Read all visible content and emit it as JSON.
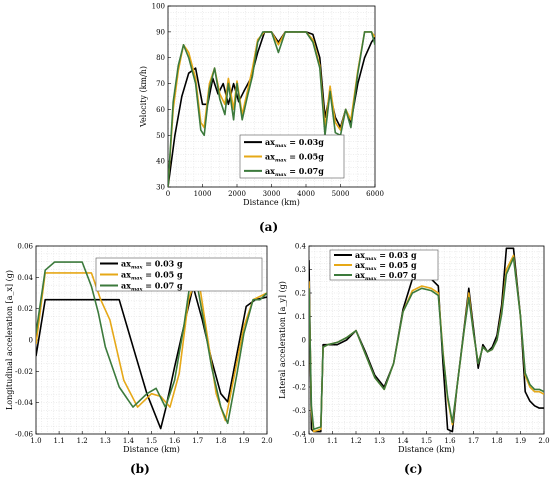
{
  "panel_labels": [
    "(a)",
    "(b)",
    "(c)"
  ],
  "colors": {
    "s1": "#000000",
    "s2": "#e6a817",
    "s3": "#3c7a3c"
  },
  "chart_data": [
    {
      "type": "line",
      "id": "a",
      "xlabel": "Distance (km)",
      "ylabel": "Velocity (km/h)",
      "xlim": [
        0,
        6000
      ],
      "ylim": [
        30,
        100
      ],
      "xticks": [
        "0",
        "1000",
        "2000",
        "3000",
        "4000",
        "5000",
        "6000"
      ],
      "yticks": [
        "30",
        "40",
        "50",
        "60",
        "70",
        "80",
        "90",
        "100"
      ],
      "grid": true,
      "legend_position": "lower-center",
      "series": [
        {
          "name": "ax_max = 0.03g",
          "color": "#000000",
          "x": [
            0,
            200,
            400,
            600,
            800,
            1000,
            1150,
            1300,
            1450,
            1600,
            1750,
            1900,
            2050,
            2200,
            2400,
            2600,
            2800,
            3000,
            3200,
            3400,
            3600,
            3800,
            4000,
            4200,
            4400,
            4550,
            4700,
            4850,
            5000,
            5150,
            5300,
            5500,
            5700,
            5900,
            6000
          ],
          "y": [
            30,
            50,
            65,
            74,
            76,
            62,
            62,
            72,
            66,
            70,
            62,
            70,
            63,
            67,
            72,
            82,
            90,
            90,
            86,
            90,
            90,
            90,
            90,
            89,
            80,
            57,
            66,
            57,
            53,
            60,
            55,
            70,
            80,
            86,
            88
          ]
        },
        {
          "name": "ax_max = 0.05g",
          "color": "#e6a817",
          "x": [
            0,
            150,
            300,
            450,
            600,
            800,
            950,
            1050,
            1200,
            1350,
            1500,
            1650,
            1750,
            1900,
            2000,
            2150,
            2300,
            2450,
            2600,
            2800,
            3000,
            3200,
            3400,
            3600,
            3800,
            4000,
            4200,
            4400,
            4550,
            4700,
            4850,
            5000,
            5150,
            5300,
            5500,
            5700,
            5900,
            6000
          ],
          "y": [
            30,
            60,
            75,
            85,
            82,
            72,
            55,
            53,
            70,
            76,
            66,
            62,
            72,
            60,
            71,
            58,
            67,
            76,
            87,
            90,
            90,
            85,
            90,
            90,
            90,
            90,
            87,
            77,
            53,
            69,
            55,
            52,
            60,
            56,
            75,
            90,
            90,
            88
          ]
        },
        {
          "name": "ax_max = 0.07g",
          "color": "#3c7a3c",
          "x": [
            0,
            150,
            300,
            450,
            600,
            800,
            950,
            1050,
            1200,
            1350,
            1500,
            1650,
            1750,
            1900,
            2000,
            2150,
            2300,
            2450,
            2600,
            2750,
            3000,
            3200,
            3400,
            3600,
            3800,
            4000,
            4200,
            4400,
            4550,
            4700,
            4850,
            5000,
            5150,
            5300,
            5500,
            5700,
            5900,
            6000
          ],
          "y": [
            30,
            63,
            77,
            85,
            80,
            70,
            52,
            50,
            68,
            76,
            64,
            58,
            70,
            56,
            70,
            56,
            65,
            73,
            86,
            90,
            90,
            82,
            90,
            90,
            90,
            90,
            86,
            76,
            50,
            67,
            51,
            50,
            60,
            53,
            74,
            90,
            90,
            85
          ]
        }
      ]
    },
    {
      "type": "line",
      "id": "b",
      "xlabel": "Distance (km)",
      "ylabel": "Longitudinal acceleration [a_x] (g)",
      "xlim": [
        1.0,
        2.0
      ],
      "ylim": [
        -0.07,
        0.07
      ],
      "xticks": [
        "1.0",
        "1.1",
        "1.2",
        "1.3",
        "1.4",
        "1.5",
        "1.6",
        "1.7",
        "1.8",
        "1.9",
        "2.0"
      ],
      "yticks": [
        "-0.06",
        "-0.04",
        "-0.02",
        "0",
        "0.02",
        "0.04",
        "0.06"
      ],
      "grid": true,
      "legend_position": "top-right",
      "series": [
        {
          "name": "ax_max = 0.03 g",
          "color": "#000000",
          "x": [
            1.0,
            1.04,
            1.1,
            1.2,
            1.3,
            1.36,
            1.42,
            1.48,
            1.54,
            1.56,
            1.6,
            1.64,
            1.68,
            1.72,
            1.76,
            1.8,
            1.83,
            1.87,
            1.91,
            1.95,
            2.0
          ],
          "y": [
            -0.012,
            0.03,
            0.03,
            0.03,
            0.03,
            0.03,
            -0.005,
            -0.04,
            -0.066,
            -0.052,
            -0.02,
            0.01,
            0.04,
            0.015,
            -0.015,
            -0.04,
            -0.046,
            -0.01,
            0.025,
            0.03,
            0.032
          ]
        },
        {
          "name": "ax_max = 0.05 g",
          "color": "#e6a817",
          "x": [
            1.0,
            1.04,
            1.1,
            1.2,
            1.24,
            1.28,
            1.32,
            1.38,
            1.44,
            1.5,
            1.54,
            1.58,
            1.62,
            1.66,
            1.7,
            1.74,
            1.78,
            1.82,
            1.86,
            1.9,
            1.94,
            2.0
          ],
          "y": [
            -0.003,
            0.05,
            0.05,
            0.05,
            0.05,
            0.03,
            0.015,
            -0.03,
            -0.05,
            -0.04,
            -0.042,
            -0.05,
            -0.025,
            0.03,
            0.05,
            0.005,
            -0.04,
            -0.06,
            -0.025,
            0.01,
            0.03,
            0.035
          ]
        },
        {
          "name": "ax_max = 0.07 g",
          "color": "#3c7a3c",
          "x": [
            1.0,
            1.04,
            1.08,
            1.16,
            1.2,
            1.24,
            1.27,
            1.3,
            1.36,
            1.42,
            1.48,
            1.52,
            1.56,
            1.6,
            1.64,
            1.68,
            1.72,
            1.76,
            1.8,
            1.83,
            1.87,
            1.9,
            1.94,
            1.97,
            2.0
          ],
          "y": [
            0.005,
            0.052,
            0.058,
            0.058,
            0.058,
            0.04,
            0.02,
            -0.005,
            -0.035,
            -0.05,
            -0.04,
            -0.036,
            -0.05,
            -0.03,
            0.01,
            0.058,
            0.02,
            -0.02,
            -0.05,
            -0.062,
            -0.025,
            0.005,
            0.03,
            0.03,
            0.035
          ]
        }
      ]
    },
    {
      "type": "line",
      "id": "c",
      "xlabel": "Distance (km)",
      "ylabel": "Lateral acceleration [a_y] (g)",
      "xlim": [
        1.0,
        2.0
      ],
      "ylim": [
        -0.4,
        0.4
      ],
      "xticks": [
        "1.0",
        "1.1",
        "1.2",
        "1.3",
        "1.4",
        "1.5",
        "1.6",
        "1.7",
        "1.8",
        "1.9",
        "2.0"
      ],
      "yticks": [
        "-0.4",
        "-0.3",
        "-0.2",
        "-0.1",
        "0",
        "0.1",
        "0.2",
        "0.3",
        "0.4"
      ],
      "grid": true,
      "legend_position": "top-center",
      "series": [
        {
          "name": "ax_max = 0.03 g",
          "color": "#000000",
          "x": [
            1.0,
            1.01,
            1.02,
            1.05,
            1.06,
            1.08,
            1.12,
            1.16,
            1.2,
            1.24,
            1.28,
            1.32,
            1.36,
            1.4,
            1.44,
            1.48,
            1.52,
            1.55,
            1.57,
            1.59,
            1.61,
            1.63,
            1.66,
            1.68,
            1.7,
            1.72,
            1.74,
            1.76,
            1.78,
            1.8,
            1.82,
            1.84,
            1.87,
            1.9,
            1.92,
            1.94,
            1.96,
            1.98,
            2.0
          ],
          "y": [
            0.34,
            -0.38,
            -0.39,
            -0.39,
            -0.02,
            -0.02,
            -0.02,
            0.0,
            0.04,
            -0.05,
            -0.15,
            -0.2,
            -0.1,
            0.13,
            0.26,
            0.27,
            0.26,
            0.23,
            -0.1,
            -0.38,
            -0.39,
            -0.2,
            0.05,
            0.22,
            0.05,
            -0.12,
            -0.02,
            -0.05,
            -0.03,
            0.02,
            0.15,
            0.39,
            0.39,
            0.1,
            -0.22,
            -0.26,
            -0.28,
            -0.29,
            -0.29
          ]
        },
        {
          "name": "ax_max = 0.05 g",
          "color": "#e6a817",
          "x": [
            1.0,
            1.01,
            1.02,
            1.05,
            1.06,
            1.08,
            1.12,
            1.16,
            1.2,
            1.24,
            1.28,
            1.32,
            1.36,
            1.4,
            1.44,
            1.48,
            1.52,
            1.55,
            1.57,
            1.59,
            1.61,
            1.63,
            1.66,
            1.68,
            1.7,
            1.72,
            1.74,
            1.76,
            1.78,
            1.8,
            1.82,
            1.84,
            1.87,
            1.9,
            1.92,
            1.94,
            1.96,
            1.98,
            2.0
          ],
          "y": [
            0.25,
            -0.3,
            -0.39,
            -0.38,
            -0.03,
            -0.02,
            -0.01,
            0.01,
            0.04,
            -0.06,
            -0.16,
            -0.21,
            -0.1,
            0.12,
            0.21,
            0.23,
            0.22,
            0.2,
            -0.05,
            -0.25,
            -0.36,
            -0.2,
            0.04,
            0.2,
            0.03,
            -0.1,
            -0.03,
            -0.05,
            -0.04,
            0.0,
            0.12,
            0.3,
            0.36,
            0.1,
            -0.15,
            -0.2,
            -0.22,
            -0.22,
            -0.23
          ]
        },
        {
          "name": "ax_max = 0.07 g",
          "color": "#3c7a3c",
          "x": [
            1.0,
            1.01,
            1.02,
            1.05,
            1.06,
            1.08,
            1.12,
            1.16,
            1.2,
            1.24,
            1.28,
            1.32,
            1.36,
            1.4,
            1.44,
            1.48,
            1.52,
            1.55,
            1.57,
            1.59,
            1.61,
            1.63,
            1.66,
            1.68,
            1.7,
            1.72,
            1.74,
            1.76,
            1.78,
            1.8,
            1.82,
            1.84,
            1.87,
            1.9,
            1.92,
            1.94,
            1.96,
            1.98,
            2.0
          ],
          "y": [
            0.22,
            -0.28,
            -0.38,
            -0.37,
            -0.03,
            -0.02,
            -0.01,
            0.01,
            0.04,
            -0.06,
            -0.16,
            -0.21,
            -0.1,
            0.12,
            0.2,
            0.22,
            0.21,
            0.19,
            -0.06,
            -0.24,
            -0.35,
            -0.2,
            0.04,
            0.18,
            0.03,
            -0.1,
            -0.03,
            -0.05,
            -0.04,
            0.0,
            0.11,
            0.28,
            0.35,
            0.1,
            -0.14,
            -0.19,
            -0.21,
            -0.21,
            -0.22
          ]
        }
      ]
    }
  ]
}
